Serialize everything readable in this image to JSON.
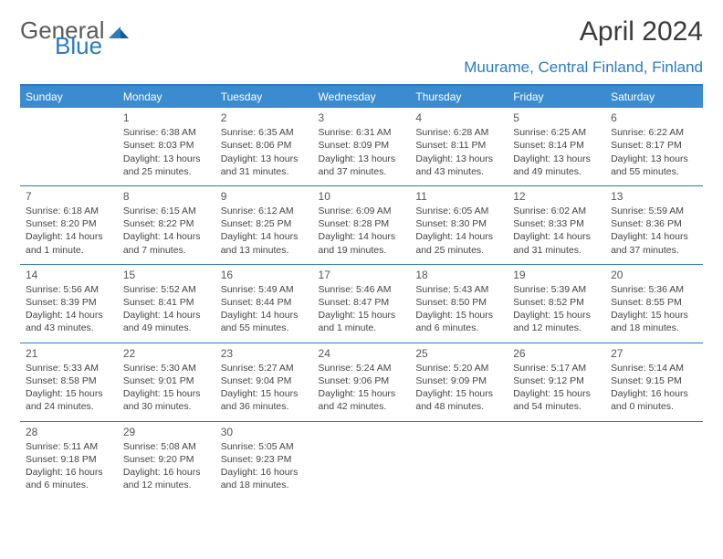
{
  "brand": {
    "part1": "General",
    "part2": "Blue"
  },
  "title": "April 2024",
  "location": "Muurame, Central Finland, Finland",
  "colors": {
    "accent": "#3b8bd0",
    "accent_border": "#2b7bbf",
    "text": "#444444",
    "header_text": "#ffffff",
    "bg": "#ffffff"
  },
  "day_headers": [
    "Sunday",
    "Monday",
    "Tuesday",
    "Wednesday",
    "Thursday",
    "Friday",
    "Saturday"
  ],
  "weeks": [
    [
      null,
      {
        "n": "1",
        "sr": "6:38 AM",
        "ss": "8:03 PM",
        "dl": "13 hours and 25 minutes."
      },
      {
        "n": "2",
        "sr": "6:35 AM",
        "ss": "8:06 PM",
        "dl": "13 hours and 31 minutes."
      },
      {
        "n": "3",
        "sr": "6:31 AM",
        "ss": "8:09 PM",
        "dl": "13 hours and 37 minutes."
      },
      {
        "n": "4",
        "sr": "6:28 AM",
        "ss": "8:11 PM",
        "dl": "13 hours and 43 minutes."
      },
      {
        "n": "5",
        "sr": "6:25 AM",
        "ss": "8:14 PM",
        "dl": "13 hours and 49 minutes."
      },
      {
        "n": "6",
        "sr": "6:22 AM",
        "ss": "8:17 PM",
        "dl": "13 hours and 55 minutes."
      }
    ],
    [
      {
        "n": "7",
        "sr": "6:18 AM",
        "ss": "8:20 PM",
        "dl": "14 hours and 1 minute."
      },
      {
        "n": "8",
        "sr": "6:15 AM",
        "ss": "8:22 PM",
        "dl": "14 hours and 7 minutes."
      },
      {
        "n": "9",
        "sr": "6:12 AM",
        "ss": "8:25 PM",
        "dl": "14 hours and 13 minutes."
      },
      {
        "n": "10",
        "sr": "6:09 AM",
        "ss": "8:28 PM",
        "dl": "14 hours and 19 minutes."
      },
      {
        "n": "11",
        "sr": "6:05 AM",
        "ss": "8:30 PM",
        "dl": "14 hours and 25 minutes."
      },
      {
        "n": "12",
        "sr": "6:02 AM",
        "ss": "8:33 PM",
        "dl": "14 hours and 31 minutes."
      },
      {
        "n": "13",
        "sr": "5:59 AM",
        "ss": "8:36 PM",
        "dl": "14 hours and 37 minutes."
      }
    ],
    [
      {
        "n": "14",
        "sr": "5:56 AM",
        "ss": "8:39 PM",
        "dl": "14 hours and 43 minutes."
      },
      {
        "n": "15",
        "sr": "5:52 AM",
        "ss": "8:41 PM",
        "dl": "14 hours and 49 minutes."
      },
      {
        "n": "16",
        "sr": "5:49 AM",
        "ss": "8:44 PM",
        "dl": "14 hours and 55 minutes."
      },
      {
        "n": "17",
        "sr": "5:46 AM",
        "ss": "8:47 PM",
        "dl": "15 hours and 1 minute."
      },
      {
        "n": "18",
        "sr": "5:43 AM",
        "ss": "8:50 PM",
        "dl": "15 hours and 6 minutes."
      },
      {
        "n": "19",
        "sr": "5:39 AM",
        "ss": "8:52 PM",
        "dl": "15 hours and 12 minutes."
      },
      {
        "n": "20",
        "sr": "5:36 AM",
        "ss": "8:55 PM",
        "dl": "15 hours and 18 minutes."
      }
    ],
    [
      {
        "n": "21",
        "sr": "5:33 AM",
        "ss": "8:58 PM",
        "dl": "15 hours and 24 minutes."
      },
      {
        "n": "22",
        "sr": "5:30 AM",
        "ss": "9:01 PM",
        "dl": "15 hours and 30 minutes."
      },
      {
        "n": "23",
        "sr": "5:27 AM",
        "ss": "9:04 PM",
        "dl": "15 hours and 36 minutes."
      },
      {
        "n": "24",
        "sr": "5:24 AM",
        "ss": "9:06 PM",
        "dl": "15 hours and 42 minutes."
      },
      {
        "n": "25",
        "sr": "5:20 AM",
        "ss": "9:09 PM",
        "dl": "15 hours and 48 minutes."
      },
      {
        "n": "26",
        "sr": "5:17 AM",
        "ss": "9:12 PM",
        "dl": "15 hours and 54 minutes."
      },
      {
        "n": "27",
        "sr": "5:14 AM",
        "ss": "9:15 PM",
        "dl": "16 hours and 0 minutes."
      }
    ],
    [
      {
        "n": "28",
        "sr": "5:11 AM",
        "ss": "9:18 PM",
        "dl": "16 hours and 6 minutes."
      },
      {
        "n": "29",
        "sr": "5:08 AM",
        "ss": "9:20 PM",
        "dl": "16 hours and 12 minutes."
      },
      {
        "n": "30",
        "sr": "5:05 AM",
        "ss": "9:23 PM",
        "dl": "16 hours and 18 minutes."
      },
      null,
      null,
      null,
      null
    ]
  ],
  "labels": {
    "sunrise": "Sunrise:",
    "sunset": "Sunset:",
    "daylight": "Daylight:"
  }
}
